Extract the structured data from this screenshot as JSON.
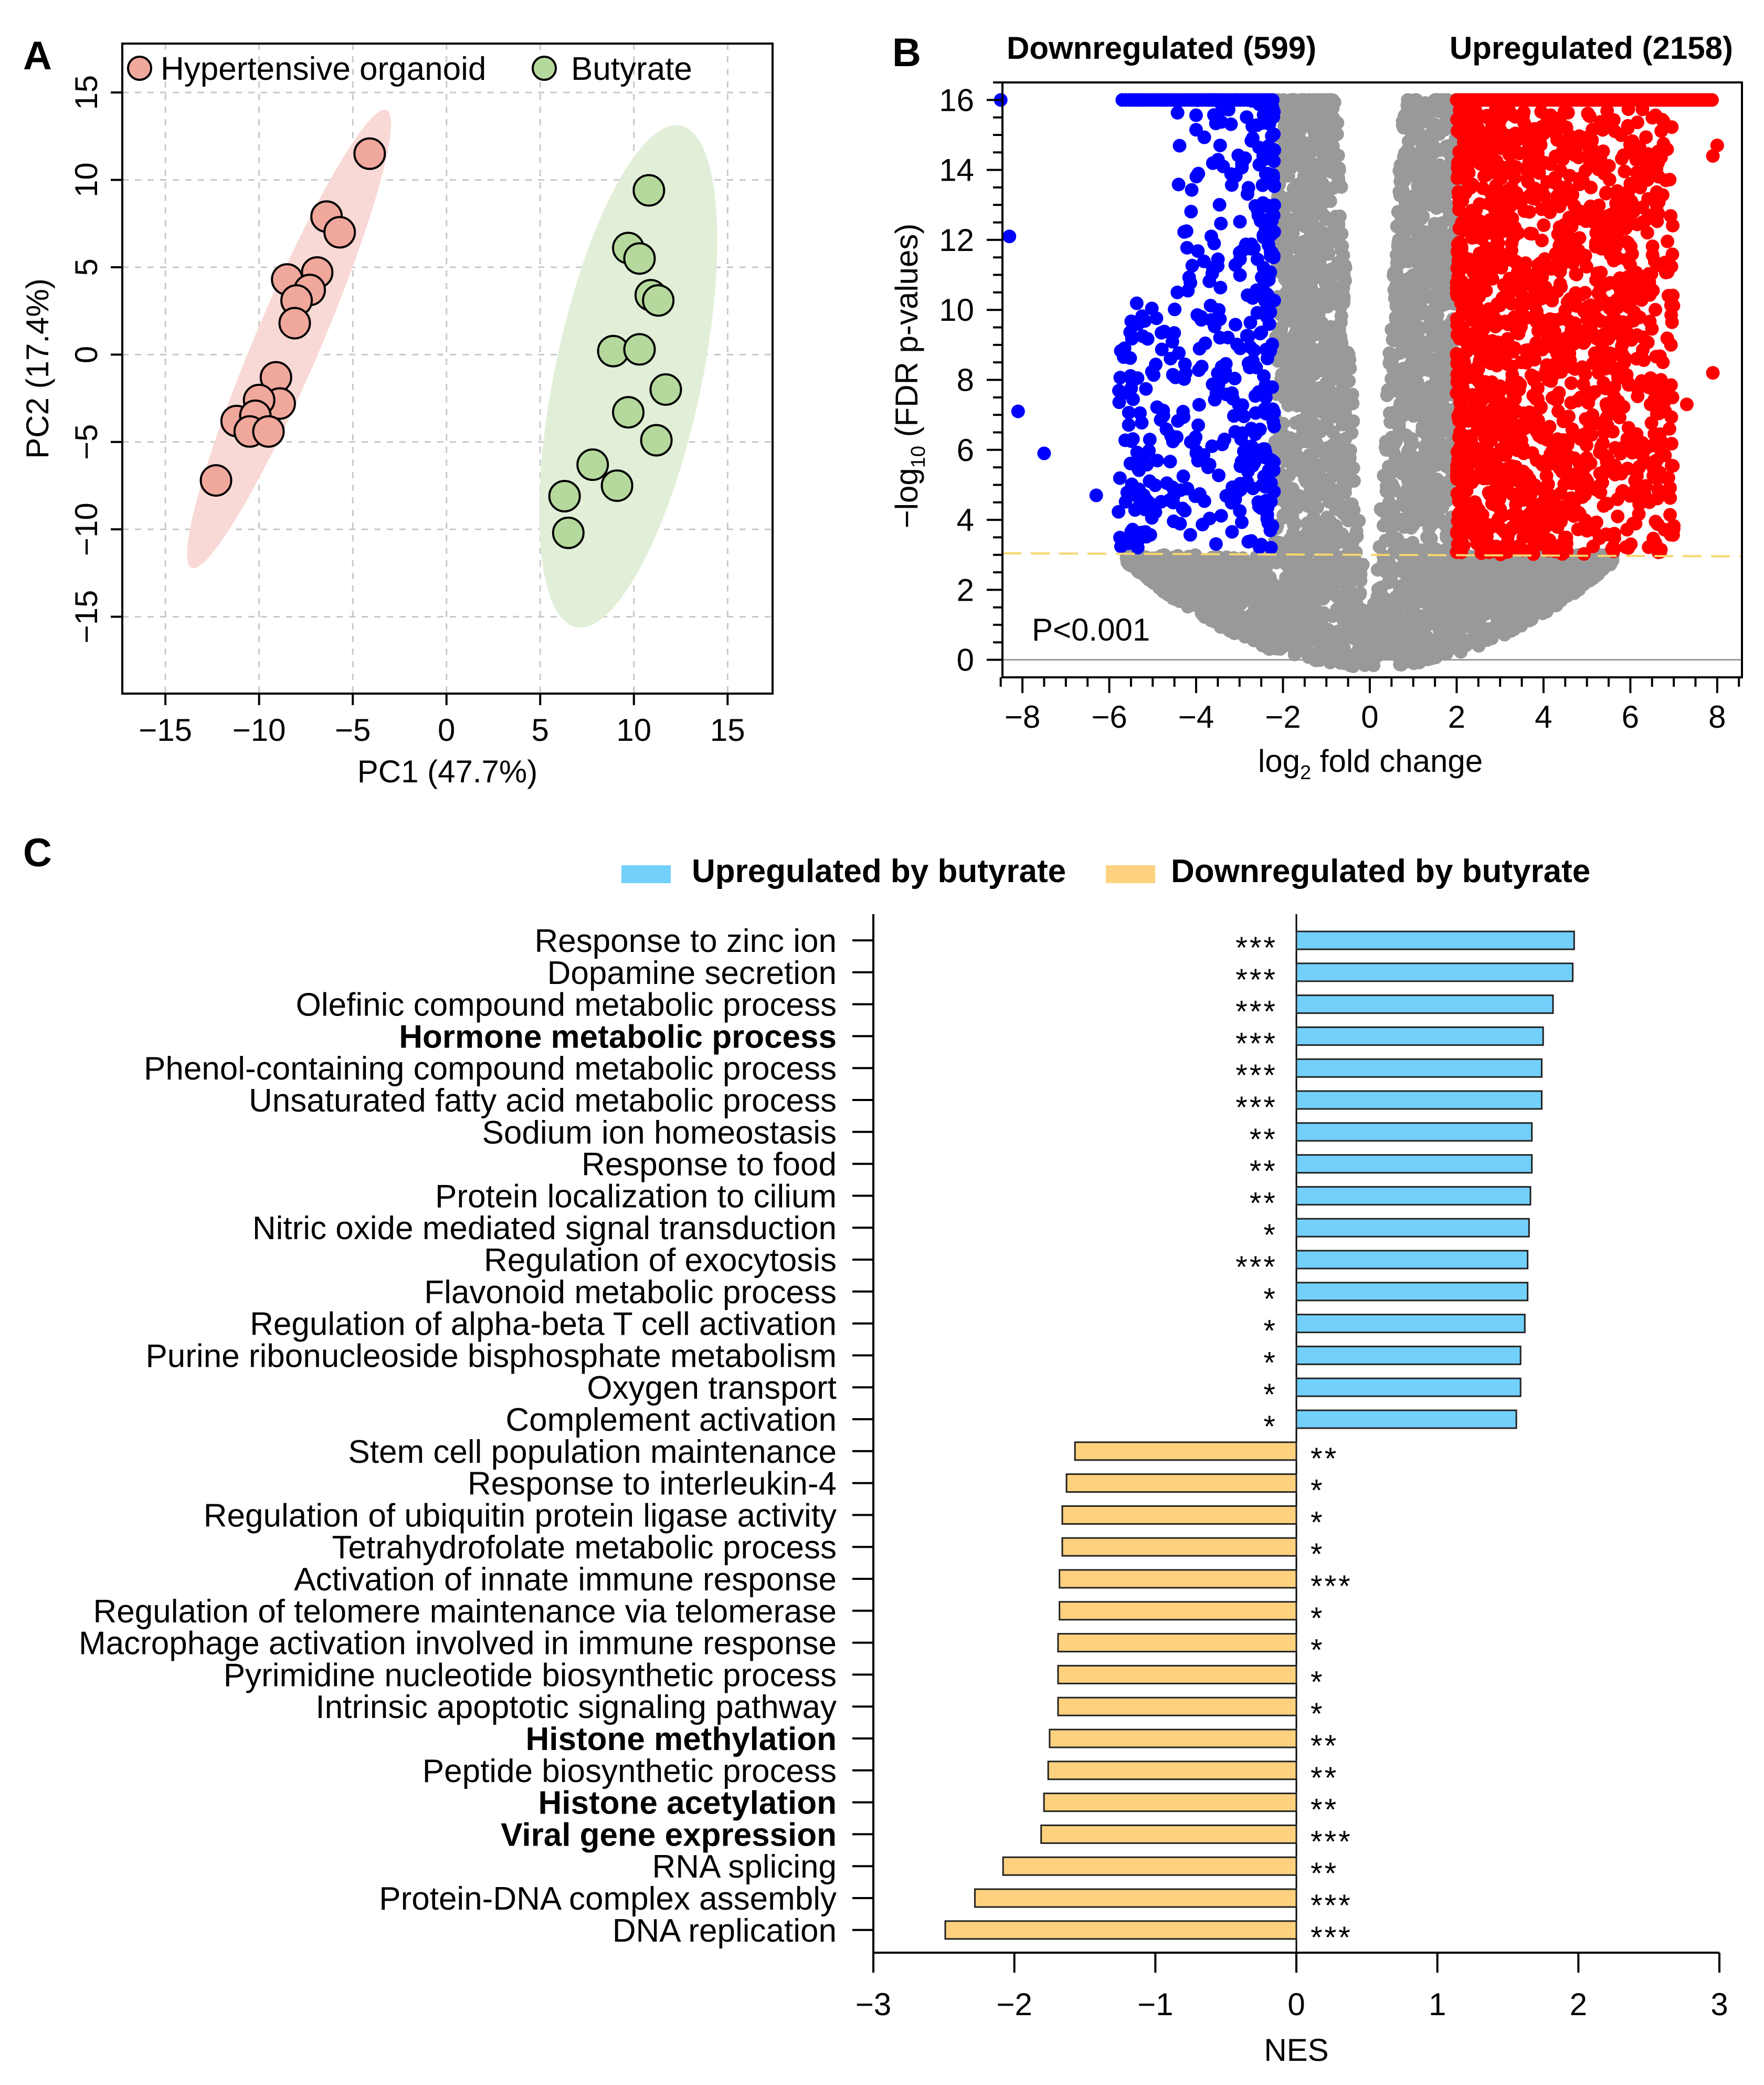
{
  "chart_data": [
    {
      "panel": "A",
      "type": "scatter",
      "xlabel": "PC1 (47.7%)",
      "ylabel": "PC2 (17.4%)",
      "xlim": [
        -17.3,
        17.4
      ],
      "ylim": [
        -19.4,
        17.8
      ],
      "xticks": [
        -15,
        -10,
        -5,
        0,
        5,
        10,
        15
      ],
      "yticks": [
        -15,
        -10,
        -5,
        0,
        5,
        10,
        15
      ],
      "grid": true,
      "legend_position": "top",
      "series": [
        {
          "name": "Hypertensive organoid",
          "color": "#f0a79c",
          "ellipse_color": "#f9d9d5",
          "ellipse_major_axis": [
            [
              -13.6,
              -12.2
            ],
            [
              -3.2,
              14.0
            ]
          ],
          "points": [
            [
              -4.1,
              11.5
            ],
            [
              -6.4,
              7.9
            ],
            [
              -5.7,
              7.0
            ],
            [
              -6.9,
              4.7
            ],
            [
              -8.5,
              4.3
            ],
            [
              -7.3,
              3.7
            ],
            [
              -8.0,
              3.1
            ],
            [
              -8.1,
              1.8
            ],
            [
              -9.1,
              -1.3
            ],
            [
              -8.9,
              -2.8
            ],
            [
              -10.0,
              -2.6
            ],
            [
              -11.2,
              -3.8
            ],
            [
              -10.2,
              -3.5
            ],
            [
              -10.5,
              -4.4
            ],
            [
              -9.5,
              -4.4
            ],
            [
              -12.3,
              -7.2
            ]
          ]
        },
        {
          "name": "Butyrate",
          "color": "#b5d99c",
          "ellipse_color": "#e2efd8",
          "ellipse_major_axis": [
            [
              6.9,
              -15.6
            ],
            [
              12.5,
              13.1
            ]
          ],
          "points": [
            [
              10.8,
              9.4
            ],
            [
              9.7,
              6.1
            ],
            [
              10.3,
              5.5
            ],
            [
              10.9,
              3.4
            ],
            [
              11.3,
              3.1
            ],
            [
              8.9,
              0.2
            ],
            [
              10.3,
              0.3
            ],
            [
              11.7,
              -2.0
            ],
            [
              9.7,
              -3.3
            ],
            [
              11.2,
              -4.9
            ],
            [
              7.8,
              -6.3
            ],
            [
              9.1,
              -7.5
            ],
            [
              6.3,
              -8.1
            ],
            [
              6.5,
              -10.2
            ]
          ]
        }
      ]
    },
    {
      "panel": "B",
      "type": "scatter",
      "xlabel_main": "log",
      "xlabel_sub": "2",
      "xlabel_rest": " fold change",
      "ylabel_pre": "−log",
      "ylabel_sub": "10",
      "ylabel_rest": " (FDR p-values)",
      "xlim": [
        -8.46,
        8.57
      ],
      "ylim": [
        -0.5,
        16.5
      ],
      "xticks": [
        -8,
        -6,
        -4,
        -2,
        0,
        2,
        4,
        6,
        8
      ],
      "yticks": [
        0,
        2,
        4,
        6,
        8,
        10,
        12,
        14,
        16
      ],
      "fold_change_threshold": 2,
      "significance_line_y": 3,
      "annotation": "P<0.001",
      "down_label": "Downregulated (599)",
      "up_label": "Upregulated (2158)",
      "colors": {
        "down": "#0000ff",
        "up": "#ff0000",
        "ns": "#999999",
        "threshold_line": "#f5d76e"
      }
    },
    {
      "panel": "C",
      "type": "bar",
      "orientation": "horizontal",
      "xlabel": "NES",
      "xlim": [
        -3,
        3
      ],
      "xticks": [
        -3,
        -2,
        -1,
        0,
        1,
        2,
        3
      ],
      "legend_position": "top",
      "legend": [
        {
          "name": "Upregulated by butyrate",
          "color": "#72d0fb"
        },
        {
          "name": "Downregulated by butyrate",
          "color": "#fdd17e"
        }
      ],
      "highlight_color": "#4cb84a",
      "categories": [
        {
          "label": "Response to zinc ion",
          "value": 1.97,
          "sig": "***",
          "highlight": false
        },
        {
          "label": "Dopamine secretion",
          "value": 1.96,
          "sig": "***",
          "highlight": false
        },
        {
          "label": "Olefinic compound metabolic process",
          "value": 1.82,
          "sig": "***",
          "highlight": false
        },
        {
          "label": "Hormone metabolic process",
          "value": 1.75,
          "sig": "***",
          "highlight": true
        },
        {
          "label": "Phenol-containing compound metabolic process",
          "value": 1.74,
          "sig": "***",
          "highlight": false
        },
        {
          "label": "Unsaturated fatty acid metabolic process",
          "value": 1.74,
          "sig": "***",
          "highlight": false
        },
        {
          "label": "Sodium ion homeostasis",
          "value": 1.67,
          "sig": "**",
          "highlight": false
        },
        {
          "label": "Response to food",
          "value": 1.67,
          "sig": "**",
          "highlight": false
        },
        {
          "label": "Protein localization to cilium",
          "value": 1.66,
          "sig": "**",
          "highlight": false
        },
        {
          "label": "Nitric oxide mediated signal transduction",
          "value": 1.65,
          "sig": "*",
          "highlight": false
        },
        {
          "label": "Regulation of exocytosis",
          "value": 1.64,
          "sig": "***",
          "highlight": false
        },
        {
          "label": "Flavonoid metabolic process",
          "value": 1.64,
          "sig": "*",
          "highlight": false
        },
        {
          "label": "Regulation of alpha-beta T cell activation",
          "value": 1.62,
          "sig": "*",
          "highlight": false
        },
        {
          "label": "Purine ribonucleoside bisphosphate metabolism",
          "value": 1.59,
          "sig": "*",
          "highlight": false
        },
        {
          "label": "Oxygen transport",
          "value": 1.59,
          "sig": "*",
          "highlight": false
        },
        {
          "label": "Complement activation",
          "value": 1.56,
          "sig": "*",
          "highlight": false
        },
        {
          "label": "Stem cell population maintenance",
          "value": -1.57,
          "sig": "**",
          "highlight": false
        },
        {
          "label": "Response to interleukin-4",
          "value": -1.63,
          "sig": "*",
          "highlight": false
        },
        {
          "label": "Regulation of ubiquitin protein ligase activity",
          "value": -1.66,
          "sig": "*",
          "highlight": false
        },
        {
          "label": "Tetrahydrofolate metabolic process",
          "value": -1.66,
          "sig": "*",
          "highlight": false
        },
        {
          "label": "Activation of innate immune response",
          "value": -1.68,
          "sig": "***",
          "highlight": false
        },
        {
          "label": "Regulation of telomere maintenance via telomerase",
          "value": -1.68,
          "sig": "*",
          "highlight": false
        },
        {
          "label": "Macrophage activation involved in immune response",
          "value": -1.69,
          "sig": "*",
          "highlight": false
        },
        {
          "label": "Pyrimidine nucleotide biosynthetic process",
          "value": -1.69,
          "sig": "*",
          "highlight": false
        },
        {
          "label": "Intrinsic apoptotic signaling pathway",
          "value": -1.69,
          "sig": "*",
          "highlight": false
        },
        {
          "label": "Histone methylation",
          "value": -1.75,
          "sig": "**",
          "highlight": true
        },
        {
          "label": "Peptide biosynthetic process",
          "value": -1.76,
          "sig": "**",
          "highlight": false
        },
        {
          "label": "Histone acetylation",
          "value": -1.79,
          "sig": "**",
          "highlight": true
        },
        {
          "label": "Viral gene expression",
          "value": -1.81,
          "sig": "***",
          "highlight": true
        },
        {
          "label": "RNA splicing",
          "value": -2.08,
          "sig": "**",
          "highlight": false
        },
        {
          "label": "Protein-DNA complex assembly",
          "value": -2.28,
          "sig": "***",
          "highlight": false
        },
        {
          "label": "DNA replication",
          "value": -2.49,
          "sig": "***",
          "highlight": false
        }
      ]
    }
  ]
}
